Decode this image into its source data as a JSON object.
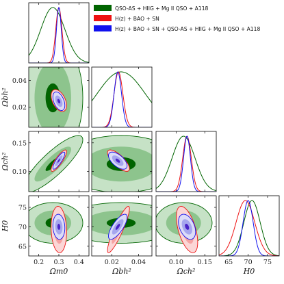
{
  "chart_data": {
    "type": "corner",
    "parameters": [
      {
        "id": "om",
        "label": "Ωm0",
        "range": [
          0.15,
          0.45
        ],
        "ticks": [
          0.2,
          0.3,
          0.4
        ],
        "tick_labels": [
          "0.2",
          "0.3",
          "0.4"
        ]
      },
      {
        "id": "ob",
        "label": "Ωbh²",
        "range": [
          0.005,
          0.05
        ],
        "ticks": [
          0.02,
          0.04
        ],
        "tick_labels": [
          "0.02",
          "0.04"
        ]
      },
      {
        "id": "oc",
        "label": "Ωch²",
        "range": [
          0.065,
          0.17
        ],
        "ticks": [
          0.1,
          0.15
        ],
        "tick_labels": [
          "0.10",
          "0.15"
        ]
      },
      {
        "id": "h0",
        "label": "H0",
        "range": [
          62.5,
          78
        ],
        "ticks": [
          65,
          70,
          75
        ],
        "tick_labels": [
          "65",
          "70",
          "75"
        ]
      }
    ],
    "series": [
      {
        "name": "QSO-AS + HIIG + Mg II QSO + A118",
        "color": "#006400",
        "mean": {
          "om": 0.27,
          "ob": 0.027,
          "oc": 0.113,
          "h0": 71.0
        },
        "sigma": {
          "om": 0.06,
          "ob": 0.018,
          "oc": 0.02,
          "h0": 2.1
        },
        "rho": {
          "om-ob": 0.0,
          "om-oc": 0.85,
          "om-h0": 0.0,
          "ob-oc": 0.0,
          "ob-h0": 0.0,
          "oc-h0": 0.0
        }
      },
      {
        "name": "H(z) + BAO + SN",
        "color": "#ee1111",
        "mean": {
          "om": 0.3,
          "ob": 0.025,
          "oc": 0.119,
          "h0": 69.3
        },
        "sigma": {
          "om": 0.0155,
          "ob": 0.0033,
          "oc": 0.0075,
          "h0": 2.4
        },
        "rho": {
          "om-ob": -0.45,
          "om-oc": 0.85,
          "om-h0": -0.1,
          "ob-oc": -0.75,
          "ob-h0": 0.9,
          "oc-h0": -0.55
        }
      },
      {
        "name": "H(z) + BAO + SN + QSO-AS + HIIG + Mg II QSO + A118",
        "color": "#1010ee",
        "mean": {
          "om": 0.3,
          "ob": 0.0245,
          "oc": 0.119,
          "h0": 70.0
        },
        "sigma": {
          "om": 0.012,
          "ob": 0.0028,
          "oc": 0.006,
          "h0": 1.3
        },
        "rho": {
          "om-ob": -0.45,
          "om-oc": 0.85,
          "om-h0": -0.1,
          "ob-oc": -0.6,
          "ob-h0": 0.75,
          "oc-h0": -0.4
        }
      }
    ],
    "legend_placement": "top-right",
    "grid": false
  }
}
